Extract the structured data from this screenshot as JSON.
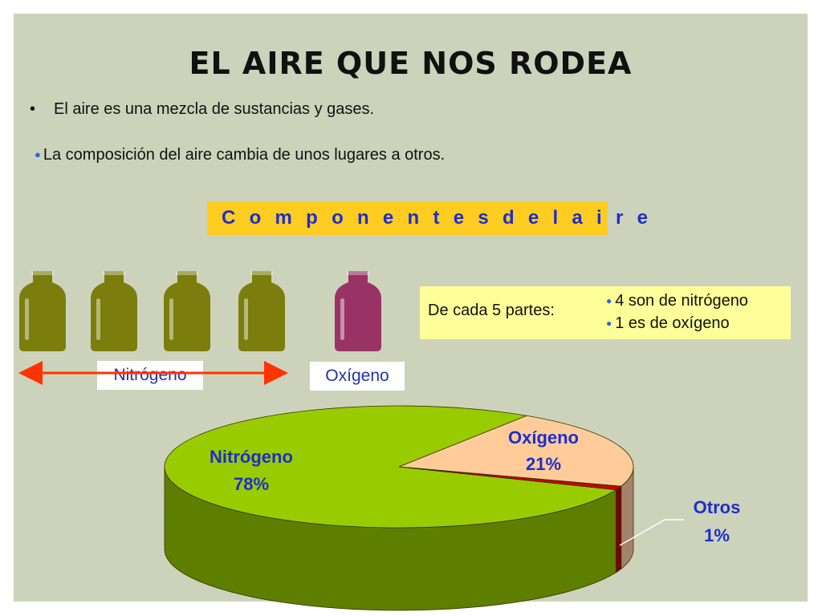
{
  "title": "EL AIRE QUE NOS RODEA",
  "bullets": [
    "El aire es una mezcla de sustancias y gases.",
    "La composición del aire cambia de unos lugares a otros."
  ],
  "components_heading": "C o m p o n e n t e s   d e l   a i r e",
  "bottle_labels": {
    "nitrogen": "Nitrógeno",
    "oxygen": "Oxígeno"
  },
  "info": {
    "lead": "De cada 5 partes:",
    "items": [
      "4 son de nitrógeno",
      "1 es de oxígeno"
    ]
  },
  "bottles": {
    "nitrogen_count": 4,
    "oxygen_count": 1
  },
  "colors": {
    "nitrogen_bottle": "#7b7e0d",
    "oxygen_bottle": "#993366",
    "nitrogen_slice": "#99cc00",
    "nitrogen_side": "#5e7e00",
    "oxygen_slice": "#ffcc99",
    "oxygen_side": "#a4836b",
    "others_slice": "#cc0000",
    "others_side": "#7a0000",
    "arrow": "#ff3300",
    "label_text": "#1e2ecc"
  },
  "chart_data": {
    "type": "pie",
    "title": "",
    "slices": [
      {
        "label": "Nitrógeno",
        "value": 78,
        "display": "78%"
      },
      {
        "label": "Oxígeno",
        "value": 21,
        "display": "21%"
      },
      {
        "label": "Otros",
        "value": 1,
        "display": "1%"
      }
    ]
  }
}
